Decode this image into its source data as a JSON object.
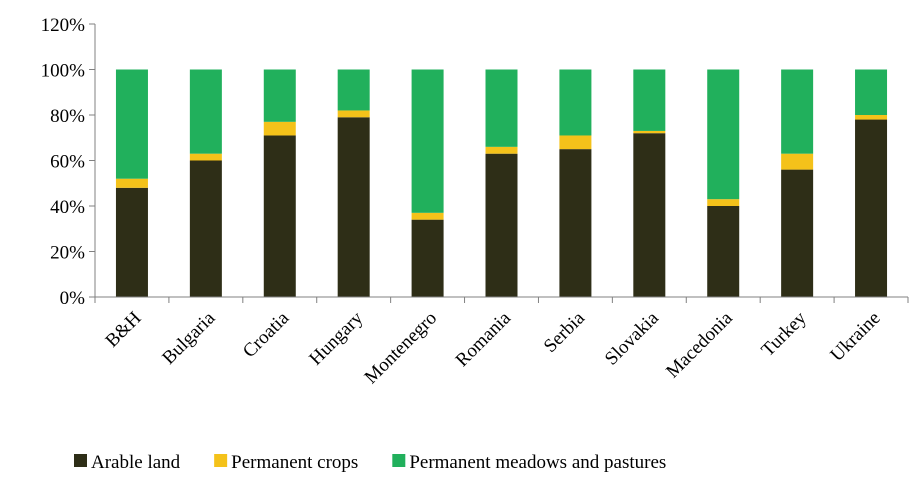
{
  "chart_data": {
    "type": "bar",
    "stacked": true,
    "percent_stacked": true,
    "categories": [
      "B&H",
      "Bulgaria",
      "Croatia",
      "Hungary",
      "Montenegro",
      "Romania",
      "Serbia",
      "Slovakia",
      "Macedonia",
      "Turkey",
      "Ukraine"
    ],
    "series": [
      {
        "name": "Arable land",
        "color": "#2e2e17",
        "values": [
          48,
          60,
          71,
          79,
          34,
          63,
          65,
          72,
          40,
          56,
          78
        ]
      },
      {
        "name": "Permanent crops",
        "color": "#f4c21a",
        "values": [
          4,
          3,
          6,
          3,
          3,
          3,
          6,
          1,
          3,
          7,
          2
        ]
      },
      {
        "name": "Permanent meadows and pastures",
        "color": "#21b05c",
        "values": [
          48,
          37,
          23,
          18,
          63,
          34,
          29,
          27,
          57,
          37,
          20
        ]
      }
    ],
    "ylim": [
      0,
      120
    ],
    "yticks": [
      "0%",
      "20%",
      "40%",
      "60%",
      "80%",
      "100%",
      "120%"
    ],
    "xlabel": "",
    "ylabel": "",
    "legend_position": "bottom",
    "grid": false
  }
}
